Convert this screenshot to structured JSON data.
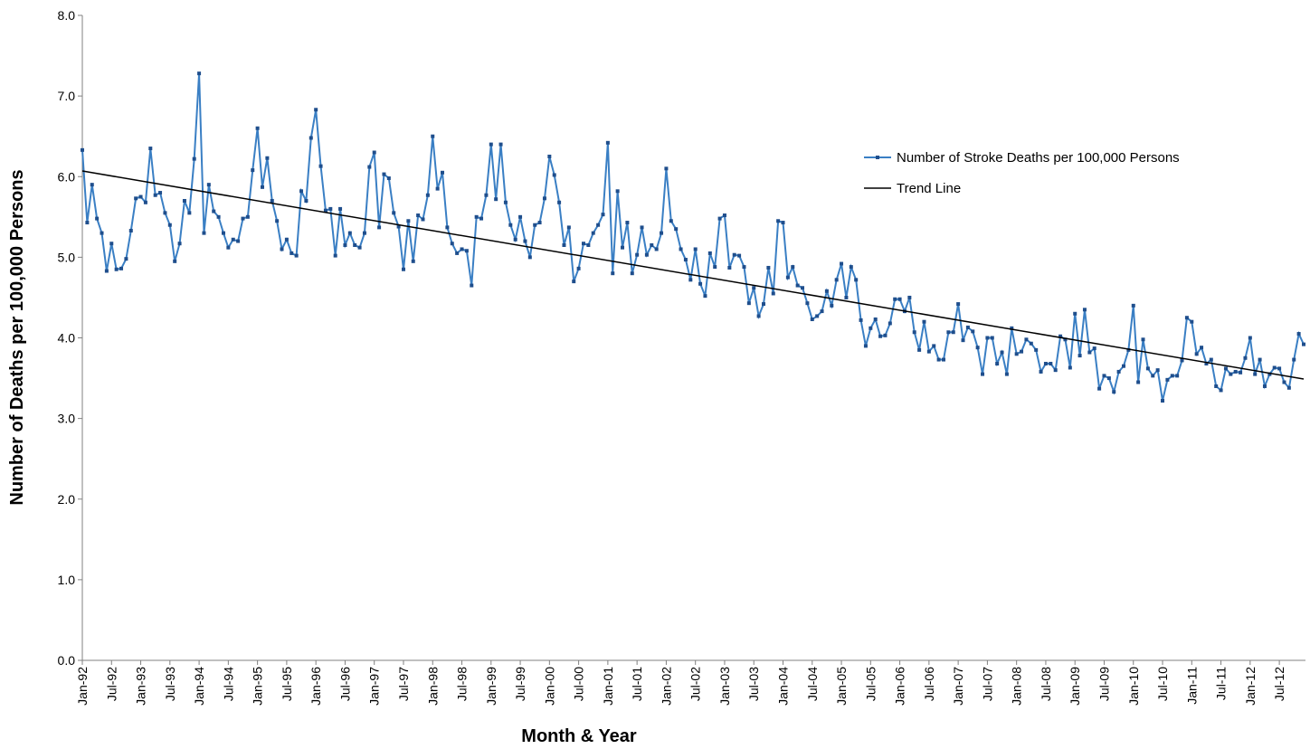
{
  "chart_data": {
    "type": "line",
    "x_label": "Month & Year",
    "y_label": "Number of Deaths per 100,000 Persons",
    "ylim": [
      0,
      8
    ],
    "yticks": [
      {
        "value": 0,
        "label": "0.0"
      },
      {
        "value": 1,
        "label": "1.0"
      },
      {
        "value": 2,
        "label": "2.0"
      },
      {
        "value": 3,
        "label": "3.0"
      },
      {
        "value": 4,
        "label": "4.0"
      },
      {
        "value": 5,
        "label": "5.0"
      },
      {
        "value": 6,
        "label": "6.0"
      },
      {
        "value": 7,
        "label": "7.0"
      },
      {
        "value": 8,
        "label": "8.0"
      }
    ],
    "grid": false,
    "legend": "upper right",
    "categories": [
      "Jan-92",
      null,
      null,
      null,
      null,
      null,
      "Jul-92",
      null,
      null,
      null,
      null,
      null,
      "Jan-93",
      null,
      null,
      null,
      null,
      null,
      "Jul-93",
      null,
      null,
      null,
      null,
      null,
      "Jan-94",
      null,
      null,
      null,
      null,
      null,
      "Jul-94",
      null,
      null,
      null,
      null,
      null,
      "Jan-95",
      null,
      null,
      null,
      null,
      null,
      "Jul-95",
      null,
      null,
      null,
      null,
      null,
      "Jan-96",
      null,
      null,
      null,
      null,
      null,
      "Jul-96",
      null,
      null,
      null,
      null,
      null,
      "Jan-97",
      null,
      null,
      null,
      null,
      null,
      "Jul-97",
      null,
      null,
      null,
      null,
      null,
      "Jan-98",
      null,
      null,
      null,
      null,
      null,
      "Jul-98",
      null,
      null,
      null,
      null,
      null,
      "Jan-99",
      null,
      null,
      null,
      null,
      null,
      "Jul-99",
      null,
      null,
      null,
      null,
      null,
      "Jan-00",
      null,
      null,
      null,
      null,
      null,
      "Jul-00",
      null,
      null,
      null,
      null,
      null,
      "Jan-01",
      null,
      null,
      null,
      null,
      null,
      "Jul-01",
      null,
      null,
      null,
      null,
      null,
      "Jan-02",
      null,
      null,
      null,
      null,
      null,
      "Jul-02",
      null,
      null,
      null,
      null,
      null,
      "Jan-03",
      null,
      null,
      null,
      null,
      null,
      "Jul-03",
      null,
      null,
      null,
      null,
      null,
      "Jan-04",
      null,
      null,
      null,
      null,
      null,
      "Jul-04",
      null,
      null,
      null,
      null,
      null,
      "Jan-05",
      null,
      null,
      null,
      null,
      null,
      "Jul-05",
      null,
      null,
      null,
      null,
      null,
      "Jan-06",
      null,
      null,
      null,
      null,
      null,
      "Jul-06",
      null,
      null,
      null,
      null,
      null,
      "Jan-07",
      null,
      null,
      null,
      null,
      null,
      "Jul-07",
      null,
      null,
      null,
      null,
      null,
      "Jan-08",
      null,
      null,
      null,
      null,
      null,
      "Jul-08",
      null,
      null,
      null,
      null,
      null,
      "Jan-09",
      null,
      null,
      null,
      null,
      null,
      "Jul-09",
      null,
      null,
      null,
      null,
      null,
      "Jan-10",
      null,
      null,
      null,
      null,
      null,
      "Jul-10",
      null,
      null,
      null,
      null,
      null,
      "Jan-11",
      null,
      null,
      null,
      null,
      null,
      "Jul-11",
      null,
      null,
      null,
      null,
      null,
      "Jan-12",
      null,
      null,
      null,
      null,
      null,
      "Jul-12",
      null,
      null,
      null,
      null,
      null
    ],
    "series": [
      {
        "name": "Number of Stroke Deaths per 100,000 Persons",
        "color": "#3a7fc4",
        "marker_color": "#1f4e8c",
        "values": [
          6.33,
          5.43,
          5.9,
          5.48,
          5.3,
          4.83,
          5.17,
          4.85,
          4.86,
          4.98,
          5.33,
          5.73,
          5.75,
          5.68,
          6.35,
          5.77,
          5.8,
          5.55,
          5.4,
          4.95,
          5.17,
          5.7,
          5.55,
          6.22,
          7.28,
          5.3,
          5.9,
          5.57,
          5.5,
          5.3,
          5.12,
          5.22,
          5.2,
          5.48,
          5.5,
          6.08,
          6.6,
          5.87,
          6.23,
          5.7,
          5.45,
          5.1,
          5.22,
          5.05,
          5.02,
          5.82,
          5.7,
          6.48,
          6.83,
          6.13,
          5.58,
          5.6,
          5.02,
          5.6,
          5.15,
          5.3,
          5.15,
          5.12,
          5.3,
          6.12,
          6.3,
          5.37,
          6.03,
          5.98,
          5.55,
          5.38,
          4.85,
          5.45,
          4.95,
          5.52,
          5.47,
          5.77,
          6.5,
          5.85,
          6.05,
          5.37,
          5.17,
          5.05,
          5.1,
          5.08,
          4.65,
          5.5,
          5.48,
          5.77,
          6.4,
          5.72,
          6.4,
          5.68,
          5.4,
          5.22,
          5.5,
          5.2,
          5.0,
          5.4,
          5.43,
          5.73,
          6.25,
          6.02,
          5.68,
          5.15,
          5.37,
          4.7,
          4.86,
          5.17,
          5.15,
          5.3,
          5.4,
          5.53,
          6.42,
          4.8,
          5.82,
          5.12,
          5.43,
          4.8,
          5.03,
          5.37,
          5.03,
          5.15,
          5.1,
          5.3,
          6.1,
          5.45,
          5.35,
          5.1,
          4.97,
          4.72,
          5.1,
          4.67,
          4.52,
          5.05,
          4.88,
          5.48,
          5.52,
          4.87,
          5.03,
          5.02,
          4.88,
          4.43,
          4.62,
          4.27,
          4.42,
          4.87,
          4.55,
          5.45,
          5.43,
          4.75,
          4.88,
          4.65,
          4.62,
          4.43,
          4.23,
          4.27,
          4.33,
          4.58,
          4.4,
          4.72,
          4.92,
          4.5,
          4.88,
          4.72,
          4.22,
          3.9,
          4.12,
          4.23,
          4.02,
          4.03,
          4.18,
          4.48,
          4.48,
          4.33,
          4.5,
          4.07,
          3.85,
          4.2,
          3.83,
          3.9,
          3.73,
          3.73,
          4.07,
          4.07,
          4.42,
          3.97,
          4.13,
          4.08,
          3.88,
          3.55,
          4.0,
          4.0,
          3.68,
          3.82,
          3.55,
          4.12,
          3.8,
          3.83,
          3.98,
          3.93,
          3.85,
          3.58,
          3.68,
          3.68,
          3.6,
          4.02,
          3.98,
          3.63,
          4.3,
          3.78,
          4.35,
          3.82,
          3.87,
          3.37,
          3.53,
          3.5,
          3.33,
          3.58,
          3.65,
          3.85,
          4.4,
          3.45,
          3.98,
          3.62,
          3.53,
          3.6,
          3.22,
          3.48,
          3.53,
          3.53,
          3.72,
          4.25,
          4.2,
          3.8,
          3.88,
          3.68,
          3.73,
          3.4,
          3.35,
          3.62,
          3.55,
          3.58,
          3.57,
          3.75,
          4.0,
          3.55,
          3.73,
          3.4,
          3.55,
          3.63,
          3.62,
          3.45,
          3.38,
          3.73,
          4.05,
          3.92
        ]
      }
    ],
    "trend_line": {
      "name": "Trend Line",
      "color": "#000000",
      "start": 6.07,
      "end": 3.49
    }
  }
}
